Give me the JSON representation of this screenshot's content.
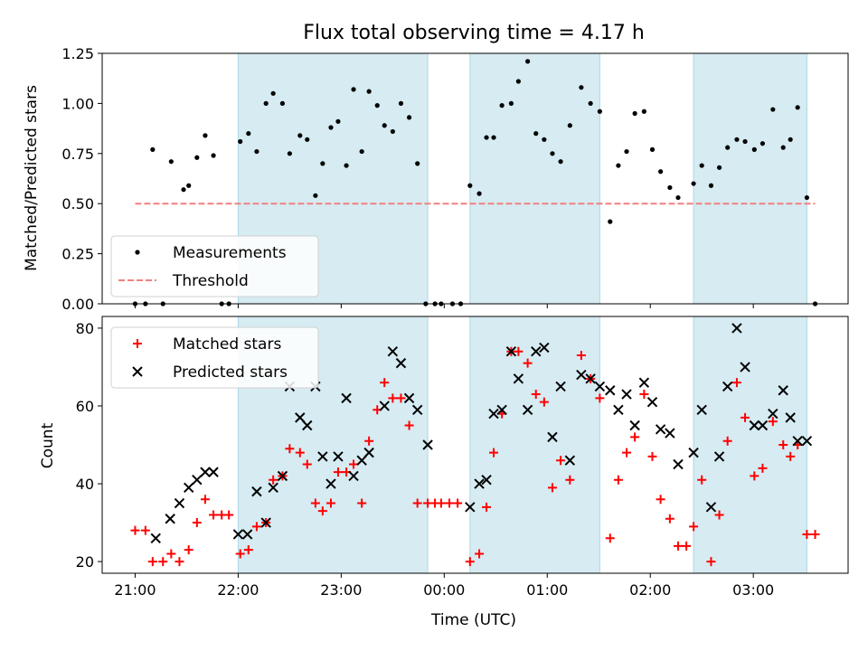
{
  "chart_data": [
    {
      "type": "scatter",
      "title": "Flux total observing time = 4.17 h",
      "xlabel": "",
      "ylabel": "Matched/Predicted stars",
      "ylim": [
        0,
        1.25
      ],
      "yticks": [
        "0.00",
        "0.25",
        "0.50",
        "0.75",
        "1.00",
        "1.25"
      ],
      "xlim_hours": [
        20.68,
        27.92
      ],
      "shaded_spans_hours": [
        [
          22.0,
          23.84
        ],
        [
          24.25,
          25.51
        ],
        [
          26.42,
          27.52
        ]
      ],
      "shade_color": "#add8e6",
      "legend_position": "lower-left",
      "series": [
        {
          "name": "Measurements",
          "color": "#000000",
          "marker": "dot",
          "x": [
            21.0,
            21.1,
            21.17,
            21.27,
            21.35,
            21.47,
            21.52,
            21.6,
            21.68,
            21.76,
            21.84,
            21.91,
            22.02,
            22.1,
            22.18,
            22.27,
            22.34,
            22.43,
            22.5,
            22.6,
            22.67,
            22.75,
            22.82,
            22.9,
            22.97,
            23.05,
            23.12,
            23.2,
            23.27,
            23.35,
            23.42,
            23.5,
            23.58,
            23.66,
            23.74,
            23.82,
            23.91,
            23.97,
            24.08,
            24.16,
            24.25,
            24.34,
            24.41,
            24.48,
            24.56,
            24.65,
            24.72,
            24.81,
            24.89,
            24.97,
            25.05,
            25.13,
            25.22,
            25.33,
            25.42,
            25.51,
            25.61,
            25.69,
            25.77,
            25.85,
            25.94,
            26.02,
            26.1,
            26.19,
            26.27,
            26.42,
            26.5,
            26.59,
            26.67,
            26.75,
            26.84,
            26.92,
            27.01,
            27.09,
            27.19,
            27.29,
            27.36,
            27.43,
            27.52,
            27.6
          ],
          "y": [
            0.0,
            0.0,
            0.77,
            0.0,
            0.71,
            0.57,
            0.59,
            0.73,
            0.84,
            0.74,
            0.0,
            0.0,
            0.81,
            0.85,
            0.76,
            1.0,
            1.05,
            1.0,
            0.75,
            0.84,
            0.82,
            0.54,
            0.7,
            0.88,
            0.91,
            0.69,
            1.07,
            0.76,
            1.06,
            0.99,
            0.89,
            0.86,
            1.0,
            0.93,
            0.7,
            0.0,
            0.0,
            0.0,
            0.0,
            0.0,
            0.59,
            0.55,
            0.83,
            0.83,
            0.99,
            1.0,
            1.11,
            1.21,
            0.85,
            0.82,
            0.75,
            0.71,
            0.89,
            1.08,
            1.0,
            0.96,
            0.41,
            0.69,
            0.76,
            0.95,
            0.96,
            0.77,
            0.66,
            0.58,
            0.53,
            0.6,
            0.69,
            0.59,
            0.68,
            0.78,
            0.82,
            0.81,
            0.77,
            0.8,
            0.97,
            0.78,
            0.82,
            0.98,
            0.53,
            0.0
          ]
        },
        {
          "name": "Threshold",
          "color": "#f08080",
          "line": "dashed",
          "x": [
            21.0,
            27.6
          ],
          "y": [
            0.5,
            0.5
          ]
        }
      ]
    },
    {
      "type": "scatter",
      "title": "",
      "xlabel": "Time (UTC)",
      "ylabel": "Count",
      "ylim": [
        17,
        83
      ],
      "yticks": [
        "20",
        "40",
        "60",
        "80"
      ],
      "xlim_hours": [
        20.68,
        27.92
      ],
      "xticks": [
        {
          "hour": 21,
          "label": "21:00"
        },
        {
          "hour": 22,
          "label": "22:00"
        },
        {
          "hour": 23,
          "label": "23:00"
        },
        {
          "hour": 24,
          "label": "00:00"
        },
        {
          "hour": 25,
          "label": "01:00"
        },
        {
          "hour": 26,
          "label": "02:00"
        },
        {
          "hour": 27,
          "label": "03:00"
        }
      ],
      "shaded_spans_hours": [
        [
          22.0,
          23.84
        ],
        [
          24.25,
          25.51
        ],
        [
          26.42,
          27.52
        ]
      ],
      "shade_color": "#add8e6",
      "legend_position": "top-left",
      "series": [
        {
          "name": "Matched stars",
          "color": "#ff0000",
          "marker": "plus",
          "x": [
            21.0,
            21.1,
            21.17,
            21.27,
            21.35,
            21.43,
            21.52,
            21.6,
            21.68,
            21.76,
            21.84,
            21.91,
            22.02,
            22.1,
            22.18,
            22.27,
            22.34,
            22.43,
            22.5,
            22.6,
            22.67,
            22.75,
            22.82,
            22.9,
            22.97,
            23.05,
            23.12,
            23.2,
            23.27,
            23.35,
            23.42,
            23.5,
            23.58,
            23.66,
            23.74,
            23.84,
            23.91,
            23.97,
            24.05,
            24.13,
            24.25,
            24.34,
            24.41,
            24.48,
            24.56,
            24.65,
            24.72,
            24.81,
            24.89,
            24.97,
            25.05,
            25.13,
            25.22,
            25.33,
            25.42,
            25.51,
            25.61,
            25.69,
            25.77,
            25.85,
            25.94,
            26.02,
            26.1,
            26.19,
            26.27,
            26.35,
            26.42,
            26.5,
            26.59,
            26.67,
            26.75,
            26.84,
            26.92,
            27.01,
            27.09,
            27.19,
            27.29,
            27.36,
            27.43,
            27.52,
            27.6
          ],
          "y": [
            28,
            28,
            20,
            20,
            22,
            20,
            23,
            30,
            36,
            32,
            32,
            32,
            22,
            23,
            29,
            30,
            41,
            42,
            49,
            48,
            45,
            35,
            33,
            35,
            43,
            43,
            45,
            35,
            51,
            59,
            66,
            62,
            62,
            55,
            35,
            35,
            35,
            35,
            35,
            35,
            20,
            22,
            34,
            48,
            58,
            74,
            74,
            71,
            63,
            61,
            39,
            46,
            41,
            73,
            67,
            62,
            26,
            41,
            48,
            52,
            63,
            47,
            36,
            31,
            24,
            24,
            29,
            41,
            20,
            32,
            51,
            66,
            57,
            42,
            44,
            56,
            50,
            47,
            50,
            27,
            27
          ]
        },
        {
          "name": "Predicted stars",
          "color": "#000000",
          "marker": "x",
          "x": [
            21.2,
            21.34,
            21.43,
            21.52,
            21.6,
            21.68,
            21.76,
            22.0,
            22.09,
            22.18,
            22.27,
            22.34,
            22.43,
            22.5,
            22.6,
            22.67,
            22.75,
            22.82,
            22.9,
            22.97,
            23.05,
            23.12,
            23.2,
            23.27,
            23.42,
            23.5,
            23.58,
            23.66,
            23.74,
            23.84,
            24.25,
            24.34,
            24.41,
            24.48,
            24.56,
            24.65,
            24.72,
            24.81,
            24.89,
            24.97,
            25.05,
            25.13,
            25.22,
            25.33,
            25.42,
            25.51,
            25.61,
            25.69,
            25.77,
            25.85,
            25.94,
            26.02,
            26.1,
            26.19,
            26.27,
            26.42,
            26.5,
            26.59,
            26.67,
            26.75,
            26.84,
            26.92,
            27.01,
            27.09,
            27.19,
            27.29,
            27.36,
            27.43,
            27.52
          ],
          "y": [
            26,
            31,
            35,
            39,
            41,
            43,
            43,
            27,
            27,
            38,
            30,
            39,
            42,
            65,
            57,
            55,
            65,
            47,
            40,
            47,
            62,
            42,
            46,
            48,
            60,
            74,
            71,
            62,
            59,
            50,
            34,
            40,
            41,
            58,
            59,
            74,
            67,
            59,
            74,
            75,
            52,
            65,
            46,
            68,
            67,
            65,
            64,
            59,
            63,
            55,
            66,
            61,
            54,
            53,
            45,
            48,
            59,
            34,
            47,
            65,
            80,
            70,
            55,
            55,
            58,
            64,
            57,
            51,
            51
          ]
        }
      ]
    }
  ]
}
